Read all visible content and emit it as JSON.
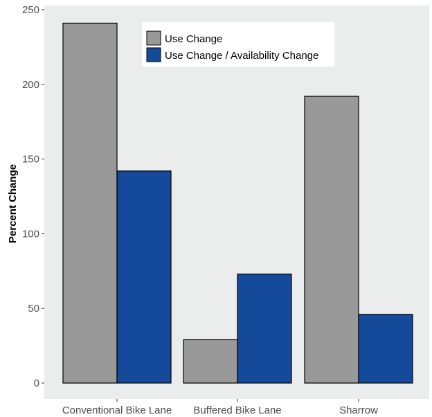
{
  "chart_data": {
    "type": "bar",
    "title": "",
    "xlabel": "",
    "ylabel": "Percent Change",
    "categories": [
      "Conventional Bike Lane",
      "Buffered Bike Lane",
      "Sharrow"
    ],
    "series": [
      {
        "name": "Use Change",
        "values": [
          241,
          29,
          192
        ],
        "color": "#999999"
      },
      {
        "name": "Use Change / Availability Change",
        "values": [
          142,
          73,
          46
        ],
        "color": "#15499a"
      }
    ],
    "ylim": [
      0,
      255
    ],
    "yticks": [
      0,
      50,
      100,
      150,
      200,
      250
    ],
    "grid": false,
    "legend": "top-center",
    "panel_background": "#ebecec",
    "bar_outline": "#000000"
  }
}
